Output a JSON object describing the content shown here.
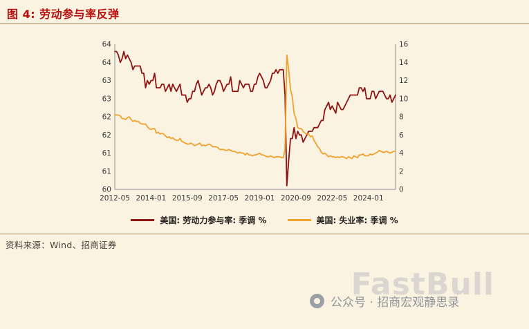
{
  "page": {
    "title": "图 4: 劳动参与率反弹",
    "source": "资料来源：Wind、招商证券",
    "watermark": "FastBull",
    "footer": "公众号 · 招商宏观静思录"
  },
  "colors": {
    "background": "#fbf3e1",
    "title_red": "#b80e0e",
    "divider_brown": "#a8835a",
    "participation_line": "#8e1414",
    "unemployment_line": "#f0a22e",
    "axis_text": "#3a3a3a",
    "watermark_gray": "#c6c6c6",
    "footer_gray": "#8f959a"
  },
  "chart_data": {
    "type": "line",
    "title": "劳动参与率反弹",
    "x_start": "2012-05",
    "x_tick_labels": [
      "2012-05",
      "2014-01",
      "2015-09",
      "2017-05",
      "2019-01",
      "2020-09",
      "2022-05",
      "2024-01"
    ],
    "x_tick_indices": [
      0,
      20,
      40,
      60,
      80,
      100,
      120,
      140
    ],
    "left_axis": {
      "min": 60,
      "max": 64,
      "tick_step": 0.5,
      "tick_labels": [
        "64",
        "64",
        "63",
        "63",
        "62",
        "62",
        "61",
        "61",
        "60"
      ]
    },
    "right_axis": {
      "min": 0,
      "max": 16,
      "tick_step": 2,
      "tick_labels": [
        "16",
        "14",
        "12",
        "10",
        "8",
        "6",
        "4",
        "2",
        "0"
      ]
    },
    "grid": false,
    "legend_position": "bottom",
    "series": [
      {
        "name": "美国: 劳动力参与率: 季调 %",
        "axis": "left",
        "color": "#8e1414",
        "values": [
          63.8,
          63.8,
          63.7,
          63.5,
          63.6,
          63.8,
          63.6,
          63.7,
          63.6,
          63.5,
          63.3,
          63.4,
          63.4,
          63.4,
          63.4,
          63.2,
          63.2,
          62.8,
          63.0,
          62.9,
          63.0,
          63.0,
          63.2,
          62.8,
          62.8,
          62.8,
          62.9,
          62.9,
          62.7,
          62.8,
          62.9,
          62.7,
          62.9,
          62.8,
          62.7,
          62.8,
          62.9,
          62.6,
          62.6,
          62.6,
          62.4,
          62.5,
          62.5,
          62.7,
          62.7,
          62.9,
          63.0,
          62.8,
          62.6,
          62.7,
          62.8,
          62.8,
          62.9,
          62.8,
          62.6,
          62.7,
          62.9,
          63.0,
          63.0,
          62.9,
          62.7,
          62.8,
          62.9,
          62.9,
          63.1,
          62.7,
          62.7,
          62.7,
          62.7,
          63.0,
          62.9,
          62.8,
          62.9,
          62.9,
          62.9,
          62.7,
          62.7,
          62.9,
          62.9,
          63.1,
          63.2,
          63.1,
          63.0,
          62.8,
          62.8,
          62.9,
          63.0,
          63.2,
          63.2,
          63.3,
          63.2,
          63.3,
          63.3,
          63.3,
          62.6,
          60.1,
          60.8,
          61.4,
          61.4,
          61.7,
          61.4,
          61.6,
          61.5,
          61.5,
          61.3,
          61.4,
          61.5,
          61.6,
          61.6,
          61.6,
          61.7,
          61.7,
          61.7,
          61.8,
          61.9,
          61.9,
          62.2,
          62.3,
          62.4,
          62.2,
          62.3,
          62.2,
          62.1,
          62.4,
          62.3,
          62.2,
          62.2,
          62.3,
          62.4,
          62.5,
          62.6,
          62.6,
          62.6,
          62.6,
          62.6,
          62.8,
          62.8,
          62.7,
          62.8,
          62.5,
          62.5,
          62.5,
          62.7,
          62.7,
          62.5,
          62.6,
          62.7,
          62.7,
          62.7,
          62.6,
          62.5,
          62.5,
          62.6,
          62.4,
          62.5,
          62.6
        ]
      },
      {
        "name": "美国: 失业率: 季调 %",
        "axis": "right",
        "color": "#f0a22e",
        "values": [
          8.2,
          8.2,
          8.2,
          8.1,
          7.8,
          7.8,
          7.7,
          7.9,
          8.0,
          7.7,
          7.5,
          7.6,
          7.5,
          7.5,
          7.3,
          7.2,
          7.2,
          7.2,
          6.9,
          6.7,
          6.6,
          6.7,
          6.7,
          6.2,
          6.3,
          6.1,
          6.2,
          6.1,
          5.9,
          5.7,
          5.8,
          5.6,
          5.7,
          5.5,
          5.4,
          5.4,
          5.6,
          5.3,
          5.2,
          5.1,
          5.0,
          5.0,
          5.1,
          5.0,
          4.8,
          4.9,
          5.0,
          5.1,
          4.8,
          4.9,
          4.8,
          4.9,
          5.0,
          4.9,
          4.7,
          4.7,
          4.7,
          4.6,
          4.4,
          4.4,
          4.4,
          4.3,
          4.3,
          4.4,
          4.3,
          4.2,
          4.2,
          4.1,
          4.0,
          4.1,
          4.0,
          4.0,
          3.8,
          4.0,
          3.8,
          3.8,
          3.7,
          3.8,
          3.8,
          3.9,
          4.0,
          3.8,
          3.8,
          3.7,
          3.6,
          3.6,
          3.7,
          3.6,
          3.5,
          3.6,
          3.6,
          3.6,
          3.5,
          3.5,
          4.4,
          14.8,
          13.2,
          11.0,
          10.2,
          8.4,
          7.8,
          6.8,
          6.7,
          6.7,
          6.4,
          6.2,
          6.1,
          6.1,
          5.8,
          5.9,
          5.4,
          5.1,
          4.7,
          4.5,
          4.1,
          3.9,
          4.0,
          3.8,
          3.6,
          3.7,
          3.6,
          3.6,
          3.5,
          3.6,
          3.5,
          3.6,
          3.6,
          3.5,
          3.4,
          3.6,
          3.5,
          3.4,
          3.7,
          3.6,
          3.5,
          3.8,
          3.8,
          3.9,
          3.7,
          3.7,
          3.7,
          3.9,
          3.8,
          3.9,
          4.0,
          4.1,
          4.3,
          4.2,
          4.1,
          4.1,
          4.2,
          4.1,
          4.0,
          4.1,
          4.2,
          4.2
        ]
      }
    ]
  }
}
